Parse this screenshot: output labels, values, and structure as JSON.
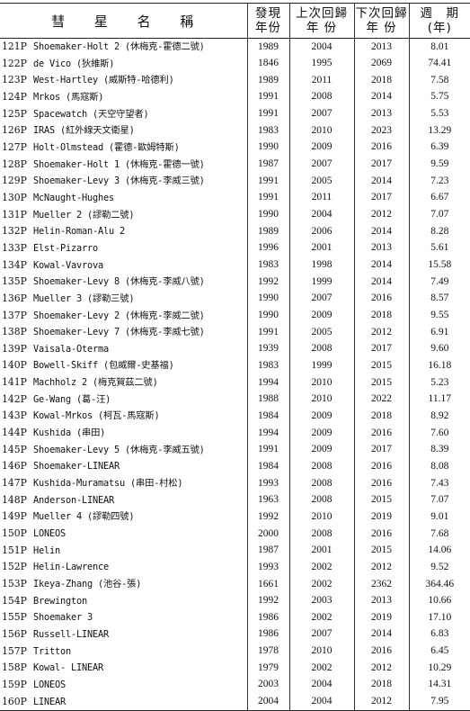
{
  "header": {
    "name": "彗 星 名 稱",
    "discovered": [
      "發現",
      "年份"
    ],
    "last_return": [
      "上次回歸",
      "年 份"
    ],
    "next_return": [
      "下次回歸",
      "年 份"
    ],
    "period": [
      "週　期",
      "(年)"
    ]
  },
  "rows": [
    {
      "num": "121P",
      "name": "Shoemaker-Holt 2 (休梅克-霍德二號)",
      "disc": "1989",
      "last": "2004",
      "next": "2013",
      "period": "8.01"
    },
    {
      "num": "122P",
      "name": "de Vico (狄維斯)",
      "disc": "1846",
      "last": "1995",
      "next": "2069",
      "period": "74.41"
    },
    {
      "num": "123P",
      "name": "West-Hartley (威斯特-哈德利)",
      "disc": "1989",
      "last": "2011",
      "next": "2018",
      "period": "7.58"
    },
    {
      "num": "124P",
      "name": "Mrkos (馬寇斯)",
      "disc": "1991",
      "last": "2008",
      "next": "2014",
      "period": "5.75"
    },
    {
      "num": "125P",
      "name": "Spacewatch (天空守望者)",
      "disc": "1991",
      "last": "2007",
      "next": "2013",
      "period": "5.53"
    },
    {
      "num": "126P",
      "name": "IRAS (紅外線天文衛星)",
      "disc": "1983",
      "last": "2010",
      "next": "2023",
      "period": "13.29"
    },
    {
      "num": "127P",
      "name": "Holt-Olmstead (霍德-歐姆特斯)",
      "disc": "1990",
      "last": "2009",
      "next": "2016",
      "period": "6.39"
    },
    {
      "num": "128P",
      "name": "Shoemaker-Holt 1 (休梅克-霍德一號)",
      "disc": "1987",
      "last": "2007",
      "next": "2017",
      "period": "9.59"
    },
    {
      "num": "129P",
      "name": "Shoemaker-Levy 3 (休梅克-李威三號)",
      "disc": "1991",
      "last": "2005",
      "next": "2014",
      "period": "7.23"
    },
    {
      "num": "130P",
      "name": "McNaught-Hughes",
      "disc": "1991",
      "last": "2011",
      "next": "2017",
      "period": "6.67"
    },
    {
      "num": "131P",
      "name": "Mueller 2 (謬勒二號)",
      "disc": "1990",
      "last": "2004",
      "next": "2012",
      "period": "7.07"
    },
    {
      "num": "132P",
      "name": "Helin-Roman-Alu 2",
      "disc": "1989",
      "last": "2006",
      "next": "2014",
      "period": "8.28"
    },
    {
      "num": "133P",
      "name": "Elst-Pizarro",
      "disc": "1996",
      "last": "2001",
      "next": "2013",
      "period": "5.61"
    },
    {
      "num": "134P",
      "name": "Kowal-Vavrova",
      "disc": "1983",
      "last": "1998",
      "next": "2014",
      "period": "15.58"
    },
    {
      "num": "135P",
      "name": "Shoemaker-Levy 8 (休梅克-李威八號)",
      "disc": "1992",
      "last": "1999",
      "next": "2014",
      "period": "7.49"
    },
    {
      "num": "136P",
      "name": "Mueller 3 (謬勒三號)",
      "disc": "1990",
      "last": "2007",
      "next": "2016",
      "period": "8.57"
    },
    {
      "num": "137P",
      "name": "Shoemaker-Levy 2 (休梅克-李威二號)",
      "disc": "1990",
      "last": "2009",
      "next": "2018",
      "period": "9.55"
    },
    {
      "num": "138P",
      "name": "Shoemaker-Levy 7 (休梅克-李威七號)",
      "disc": "1991",
      "last": "2005",
      "next": "2012",
      "period": "6.91"
    },
    {
      "num": "139P",
      "name": "Vaisala-Oterma",
      "disc": "1939",
      "last": "2008",
      "next": "2017",
      "period": "9.60"
    },
    {
      "num": "140P",
      "name": "Bowell-Skiff (包威爾-史基福)",
      "disc": "1983",
      "last": "1999",
      "next": "2015",
      "period": "16.18"
    },
    {
      "num": "141P",
      "name": "Machholz 2 (梅克賀茲二號)",
      "disc": "1994",
      "last": "2010",
      "next": "2015",
      "period": "5.23"
    },
    {
      "num": "142P",
      "name": "Ge-Wang (葛-汪)",
      "disc": "1988",
      "last": "2010",
      "next": "2022",
      "period": "11.17"
    },
    {
      "num": "143P",
      "name": "Kowal-Mrkos (柯瓦-馬寇斯)",
      "disc": "1984",
      "last": "2009",
      "next": "2018",
      "period": "8.92"
    },
    {
      "num": "144P",
      "name": "Kushida (串田)",
      "disc": "1994",
      "last": "2009",
      "next": "2016",
      "period": "7.60"
    },
    {
      "num": "145P",
      "name": "Shoemaker-Levy 5 (休梅克-李威五號)",
      "disc": "1991",
      "last": "2009",
      "next": "2017",
      "period": "8.39"
    },
    {
      "num": "146P",
      "name": "Shoemaker-LINEAR",
      "disc": "1984",
      "last": "2008",
      "next": "2016",
      "period": "8.08"
    },
    {
      "num": "147P",
      "name": "Kushida-Muramatsu (串田-村松)",
      "disc": "1993",
      "last": "2008",
      "next": "2016",
      "period": "7.43"
    },
    {
      "num": "148P",
      "name": "Anderson-LINEAR",
      "disc": "1963",
      "last": "2008",
      "next": "2015",
      "period": "7.07"
    },
    {
      "num": "149P",
      "name": "Mueller 4 (謬勒四號)",
      "disc": "1992",
      "last": "2010",
      "next": "2019",
      "period": "9.01"
    },
    {
      "num": "150P",
      "name": "LONEOS",
      "disc": "2000",
      "last": "2008",
      "next": "2016",
      "period": "7.68"
    },
    {
      "num": "151P",
      "name": "Helin",
      "disc": "1987",
      "last": "2001",
      "next": "2015",
      "period": "14.06"
    },
    {
      "num": "152P",
      "name": "Helin-Lawrence",
      "disc": "1993",
      "last": "2002",
      "next": "2012",
      "period": "9.52"
    },
    {
      "num": "153P",
      "name": "Ikeya-Zhang (池谷-張)",
      "disc": "1661",
      "last": "2002",
      "next": "2362",
      "period": "364.46"
    },
    {
      "num": "154P",
      "name": "Brewington",
      "disc": "1992",
      "last": "2003",
      "next": "2013",
      "period": "10.66"
    },
    {
      "num": "155P",
      "name": "Shoemaker 3",
      "disc": "1986",
      "last": "2002",
      "next": "2019",
      "period": "17.10"
    },
    {
      "num": "156P",
      "name": "Russell-LINEAR",
      "disc": "1986",
      "last": "2007",
      "next": "2014",
      "period": "6.83"
    },
    {
      "num": "157P",
      "name": "Tritton",
      "disc": "1978",
      "last": "2010",
      "next": "2016",
      "period": "6.45"
    },
    {
      "num": "158P",
      "name": "Kowal- LINEAR",
      "disc": "1979",
      "last": "2002",
      "next": "2012",
      "period": "10.29"
    },
    {
      "num": "159P",
      "name": "LONEOS",
      "disc": "2003",
      "last": "2004",
      "next": "2018",
      "period": "14.31"
    },
    {
      "num": "160P",
      "name": "LINEAR",
      "disc": "2004",
      "last": "2004",
      "next": "2012",
      "period": "7.95"
    }
  ]
}
